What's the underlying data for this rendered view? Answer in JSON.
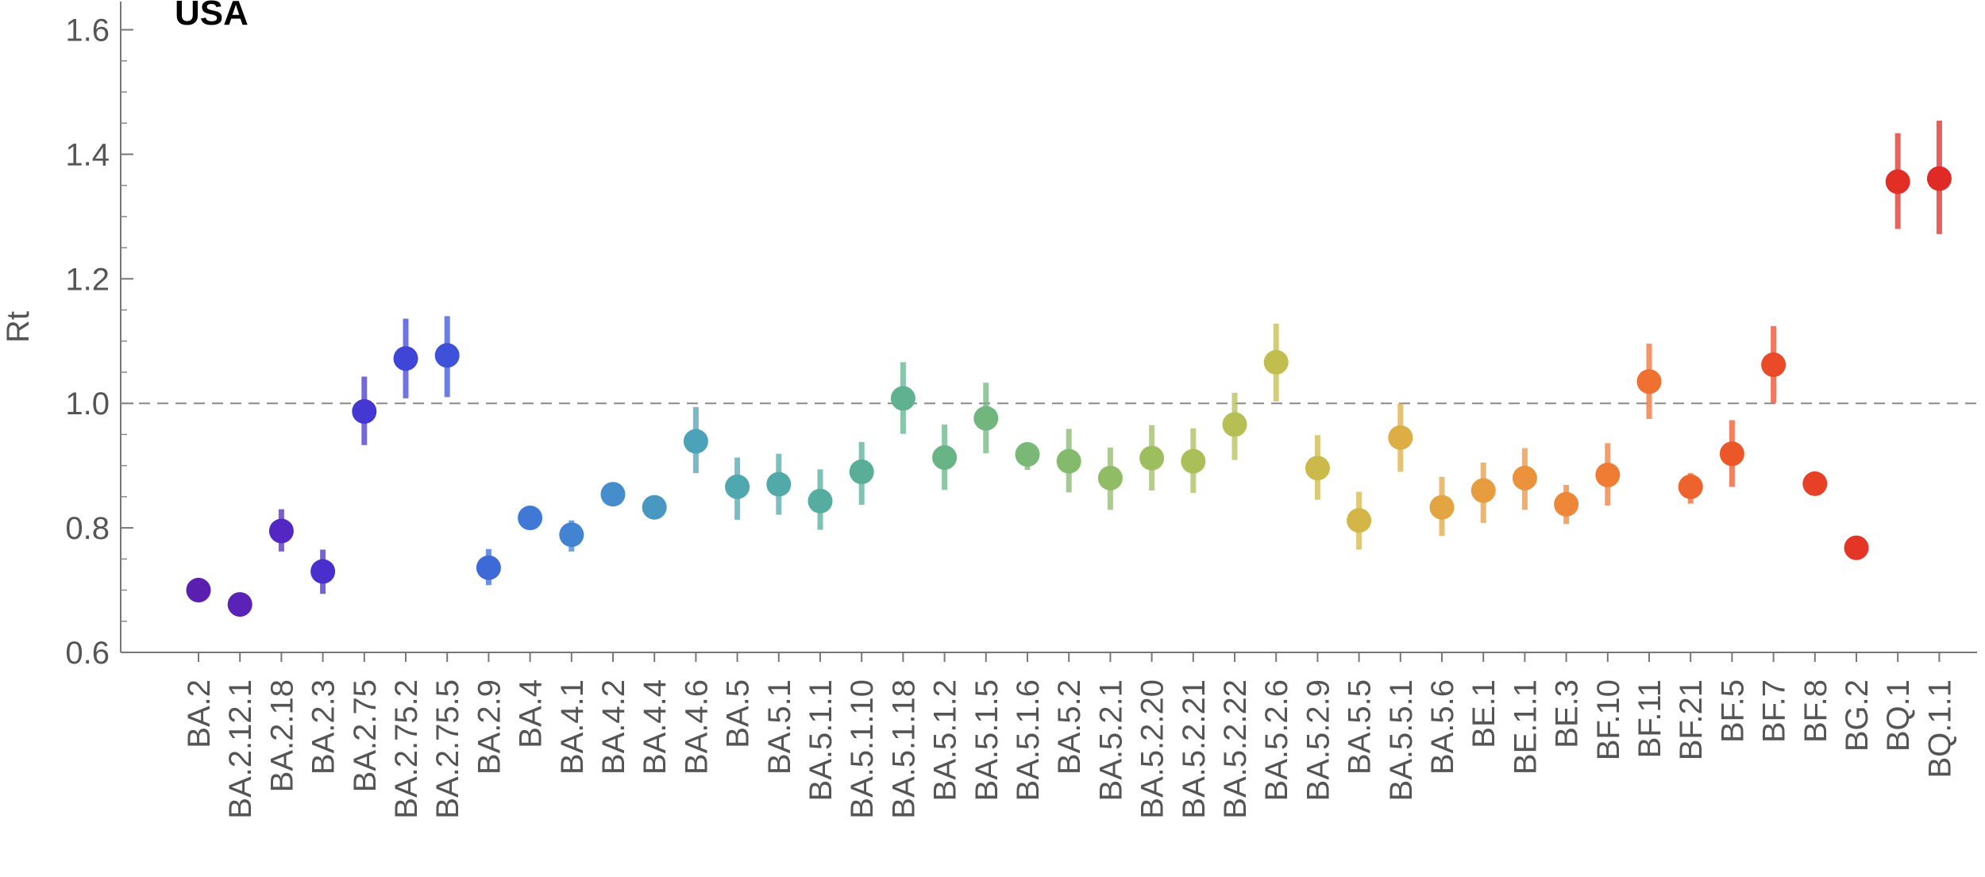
{
  "chart_data": {
    "type": "scatter",
    "title": "USA",
    "xlabel": "",
    "ylabel": "Rt",
    "ylim": [
      0.6,
      1.65
    ],
    "yticks": [
      0.6,
      0.8,
      1.0,
      1.2,
      1.4,
      1.6
    ],
    "ytick_labels": [
      "0.6",
      "0.8",
      "1.0",
      "1.2",
      "1.4",
      "1.6"
    ],
    "reference_line": 1.0,
    "grid": false,
    "categories": [
      "BA.2",
      "BA.2.12.1",
      "BA.2.18",
      "BA.2.3",
      "BA.2.75",
      "BA.2.75.2",
      "BA.2.75.5",
      "BA.2.9",
      "BA.4",
      "BA.4.1",
      "BA.4.2",
      "BA.4.4",
      "BA.4.6",
      "BA.5",
      "BA.5.1",
      "BA.5.1.1",
      "BA.5.1.10",
      "BA.5.1.18",
      "BA.5.1.2",
      "BA.5.1.5",
      "BA.5.1.6",
      "BA.5.2",
      "BA.5.2.1",
      "BA.5.2.20",
      "BA.5.2.21",
      "BA.5.2.22",
      "BA.5.2.6",
      "BA.5.2.9",
      "BA.5.5",
      "BA.5.5.1",
      "BA.5.6",
      "BE.1",
      "BE.1.1",
      "BE.3",
      "BF.10",
      "BF.11",
      "BF.21",
      "BF.5",
      "BF.7",
      "BF.8",
      "BG.2",
      "BQ.1",
      "BQ.1.1"
    ],
    "values": [
      0.7,
      0.677,
      0.795,
      0.73,
      0.987,
      1.072,
      1.077,
      0.736,
      0.816,
      0.789,
      0.854,
      0.833,
      0.939,
      0.866,
      0.87,
      0.843,
      0.89,
      1.008,
      0.913,
      0.976,
      0.918,
      0.907,
      0.88,
      0.912,
      0.907,
      0.966,
      1.066,
      0.896,
      0.812,
      0.945,
      0.833,
      0.86,
      0.88,
      0.838,
      0.885,
      1.035,
      0.866,
      0.919,
      1.062,
      0.871,
      0.768,
      1.356,
      1.361
    ],
    "lower": [
      0.7,
      0.677,
      0.762,
      0.694,
      0.933,
      1.008,
      1.01,
      0.708,
      0.816,
      0.762,
      0.854,
      0.833,
      0.888,
      0.813,
      0.821,
      0.797,
      0.837,
      0.951,
      0.861,
      0.92,
      0.893,
      0.857,
      0.829,
      0.86,
      0.856,
      0.909,
      1.003,
      0.845,
      0.765,
      0.89,
      0.787,
      0.808,
      0.829,
      0.806,
      0.836,
      0.975,
      0.839,
      0.866,
      1.001,
      0.86,
      0.758,
      1.28,
      1.272
    ],
    "upper": [
      0.7,
      0.677,
      0.83,
      0.765,
      1.043,
      1.136,
      1.14,
      0.766,
      0.816,
      0.812,
      0.854,
      0.833,
      0.994,
      0.913,
      0.919,
      0.894,
      0.938,
      1.066,
      0.966,
      1.033,
      0.934,
      0.959,
      0.929,
      0.965,
      0.96,
      1.017,
      1.128,
      0.949,
      0.858,
      1.0,
      0.882,
      0.905,
      0.928,
      0.869,
      0.936,
      1.096,
      0.888,
      0.973,
      1.124,
      0.877,
      0.778,
      1.434,
      1.454
    ],
    "colors": [
      "#5b1fb0",
      "#5a22b6",
      "#5227c4",
      "#4a2fcc",
      "#4437d2",
      "#3f45d6",
      "#3d52d8",
      "#3e6ad8",
      "#4078d6",
      "#4283d2",
      "#458ecb",
      "#4898c2",
      "#4ca2b8",
      "#4fa7af",
      "#52aaa8",
      "#55ac9f",
      "#5aae97",
      "#60b18f",
      "#68b486",
      "#70b67d",
      "#79b875",
      "#84ba6c",
      "#90bc65",
      "#9dbe5e",
      "#aabf58",
      "#b6bf53",
      "#c1be4f",
      "#cbba4b",
      "#d4b548",
      "#dcae45",
      "#e2a542",
      "#e79c3f",
      "#eb923c",
      "#ee8738",
      "#f07c34",
      "#f07030",
      "#ee632d",
      "#ec572a",
      "#e94b28",
      "#e64027",
      "#e33626",
      "#e12f26",
      "#df2a26"
    ]
  }
}
